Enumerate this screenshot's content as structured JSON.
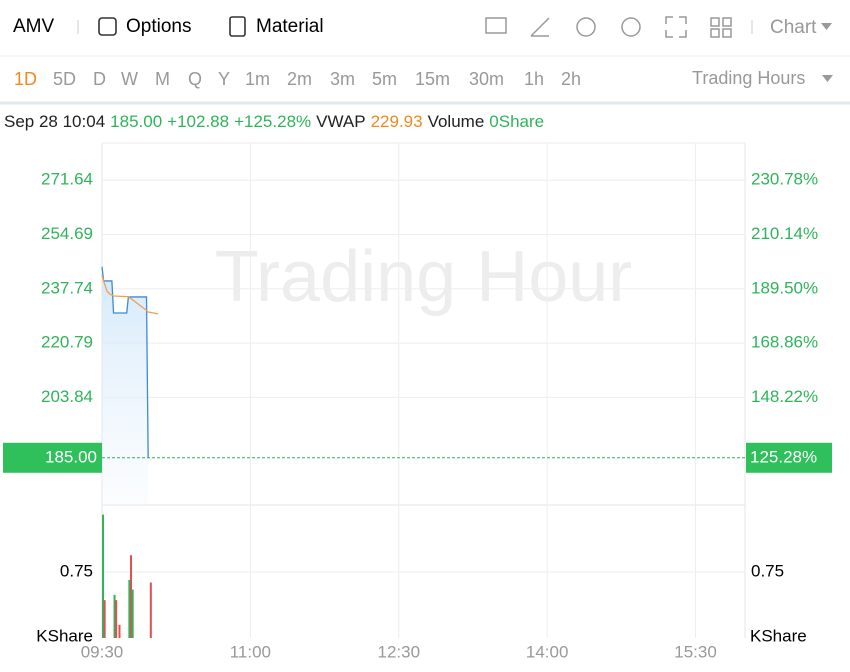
{
  "toolbar": {
    "symbol": "AMV",
    "options": "Options",
    "material": "Material",
    "chart": "Chart"
  },
  "timeframes": [
    "1D",
    "5D",
    "D",
    "W",
    "M",
    "Q",
    "Y",
    "1m",
    "2m",
    "3m",
    "5m",
    "15m",
    "30m",
    "1h",
    "2h"
  ],
  "active_timeframe": 0,
  "session": "Trading Hours",
  "quote": {
    "time": "Sep 28 10:04",
    "price": "185.00",
    "change": "+102.88",
    "change_pct": "+125.28%",
    "vwap_label": "VWAP",
    "vwap": "229.93",
    "volume_label": "Volume",
    "volume": "0Share",
    "pct": "125.28%"
  },
  "chart_data": [
    {
      "type": "line",
      "watermark": "Trading Hour",
      "x": [
        "09:30",
        "09:31",
        "09:33",
        "09:35",
        "09:36",
        "09:37",
        "09:45",
        "09:46",
        "09:57",
        "09:58",
        "10:04"
      ],
      "series": [
        {
          "name": "Price",
          "color": "#3b8bd9",
          "values": [
            244.6,
            240.2,
            240.2,
            240.2,
            240.2,
            230.2,
            230.2,
            235.2,
            235.2,
            185.0,
            null
          ]
        },
        {
          "name": "VWAP",
          "color": "#f0a050",
          "values": [
            242.0,
            240.2,
            237.0,
            236.0,
            235.8,
            235.5,
            235.3,
            235.3,
            231.0,
            230.5,
            229.93
          ]
        }
      ],
      "xlim": [
        "09:30",
        "16:00"
      ],
      "xticks": [
        "09:30",
        "11:00",
        "12:30",
        "14:00",
        "15:30"
      ],
      "ylim": [
        170.26,
        283.25
      ],
      "yticks": [
        203.84,
        220.79,
        237.74,
        254.69,
        271.64
      ],
      "y2lim": [
        107.33,
        244.92
      ],
      "y2ticks": [
        {
          "value": 148.22,
          "label": "148.22%"
        },
        {
          "value": 168.86,
          "label": "168.86%"
        },
        {
          "value": 189.5,
          "label": "189.50%"
        },
        {
          "value": 210.14,
          "label": "210.14%"
        },
        {
          "value": 230.78,
          "label": "230.78%"
        }
      ],
      "grid": true
    },
    {
      "type": "bar",
      "unit": "KShare",
      "x": [
        "09:30",
        "09:31",
        "09:37",
        "09:38",
        "09:40",
        "09:46",
        "09:47",
        "09:48",
        "09:59"
      ],
      "values": [
        1.4,
        0.43,
        0.49,
        0.43,
        0.15,
        0.66,
        0.94,
        0.55,
        0.63
      ],
      "colors": [
        "#2fb45a",
        "#e05050",
        "#2fb45a",
        "#e05050",
        "#e05050",
        "#2fb45a",
        "#e05050",
        "#2fb45a",
        "#e05050"
      ],
      "xlim": [
        "09:30",
        "16:00"
      ],
      "ylim": [
        0,
        1.51
      ],
      "yticks": [
        0.75
      ],
      "grid": true
    }
  ]
}
